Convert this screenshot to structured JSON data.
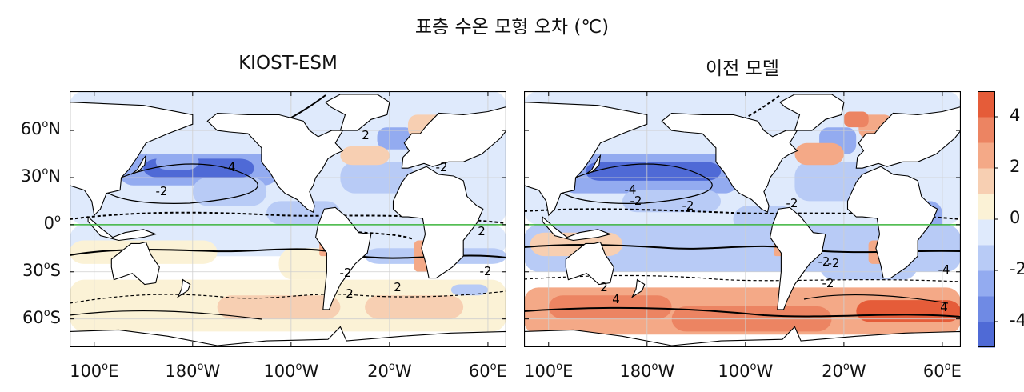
{
  "title": "표층 수온 모형 오차 (℃)",
  "chart_data": {
    "type": "heatmap",
    "panels": [
      {
        "title": "KIOST-ESM",
        "contour_labels": [
          "-4",
          "-2",
          "2",
          "-2",
          "2",
          "-2",
          "2",
          "2",
          "-2"
        ],
        "bias_pattern": "mostly weak cool bias (-1 to -3) in northern oceans, warm bias (+1 to +2) in Southern Ocean, warm spots along eastern boundaries"
      },
      {
        "title": "이전 모델",
        "contour_labels": [
          "-4",
          "-2",
          "-2",
          "-2",
          "-2",
          "-2",
          "2",
          "4",
          "-4",
          "-2",
          "4"
        ],
        "bias_pattern": "stronger cool bias in northern oceans and strong warm bias (+3 to +5) across the Southern Ocean"
      }
    ],
    "y_ticks": [
      {
        "value": 60,
        "label": "60",
        "hemi": "N"
      },
      {
        "value": 30,
        "label": "30",
        "hemi": "N"
      },
      {
        "value": 0,
        "label": "0",
        "hemi": ""
      },
      {
        "value": -30,
        "label": "30",
        "hemi": "S"
      },
      {
        "value": -60,
        "label": "60",
        "hemi": "S"
      }
    ],
    "x_ticks": [
      {
        "value": 100,
        "label": "100",
        "hemi": "E"
      },
      {
        "value": 180,
        "label": "180",
        "hemi": "W"
      },
      {
        "value": 260,
        "label": "100",
        "hemi": "W"
      },
      {
        "value": 340,
        "label": "20",
        "hemi": "W"
      },
      {
        "value": 420,
        "label": "60",
        "hemi": "E"
      }
    ],
    "xlim": [
      80,
      435
    ],
    "ylim": [
      -78,
      85
    ],
    "colorbar": {
      "range": [
        -5,
        5
      ],
      "step": 1,
      "ticks": [
        "4",
        "2",
        "0",
        "-2",
        "-4"
      ],
      "tick_values": [
        4,
        2,
        0,
        -2,
        -4
      ],
      "colors": [
        "#4f6ad6",
        "#6f8ae4",
        "#93abf0",
        "#b8cbf6",
        "#dfeafc",
        "#fbf2d6",
        "#f7cfb2",
        "#f4a987",
        "#ec8462",
        "#e55c39"
      ]
    },
    "equator_line": {
      "value": 0,
      "color": "#3cb43c"
    },
    "grid": true
  }
}
